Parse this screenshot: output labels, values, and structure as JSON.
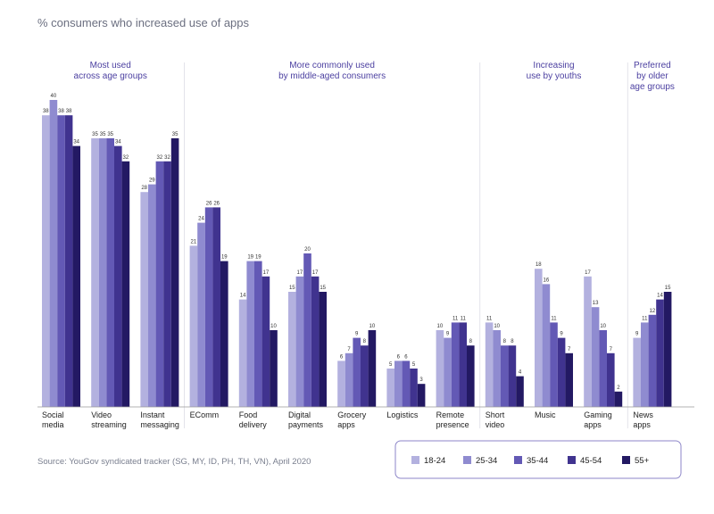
{
  "chart_data": {
    "type": "bar",
    "title": "% consumers who increased use of apps",
    "xlabel": "",
    "ylabel": "",
    "ylim": [
      0,
      40
    ],
    "categories": [
      [
        "Social",
        "media"
      ],
      [
        "Video",
        "streaming"
      ],
      [
        "Instant",
        "messaging"
      ],
      [
        "EComm"
      ],
      [
        "Food",
        "delivery"
      ],
      [
        "Digital",
        "payments"
      ],
      [
        "Grocery",
        "apps"
      ],
      [
        "Logistics"
      ],
      [
        "Remote",
        "presence"
      ],
      [
        "Short",
        "video"
      ],
      [
        "Music"
      ],
      [
        "Gaming",
        "apps"
      ],
      [
        "News",
        "apps"
      ]
    ],
    "series": [
      {
        "name": "18-24",
        "color": "#b3b1df",
        "values": [
          38,
          35,
          28,
          21,
          14,
          15,
          6,
          5,
          10,
          11,
          18,
          17,
          9
        ]
      },
      {
        "name": "25-34",
        "color": "#8f8bd0",
        "values": [
          40,
          35,
          29,
          24,
          19,
          17,
          7,
          6,
          9,
          10,
          16,
          13,
          11
        ]
      },
      {
        "name": "35-44",
        "color": "#6359b5",
        "values": [
          38,
          35,
          32,
          26,
          19,
          20,
          9,
          6,
          11,
          8,
          11,
          10,
          12
        ]
      },
      {
        "name": "45-54",
        "color": "#40338f",
        "values": [
          38,
          34,
          32,
          26,
          17,
          17,
          8,
          5,
          11,
          8,
          9,
          7,
          14
        ]
      },
      {
        "name": "55+",
        "color": "#231963",
        "values": [
          34,
          32,
          35,
          19,
          10,
          15,
          10,
          3,
          8,
          4,
          7,
          2,
          15
        ]
      }
    ],
    "groups": [
      {
        "lines": [
          "Most used",
          "across age groups"
        ],
        "categories": [
          0,
          1,
          2
        ]
      },
      {
        "lines": [
          "More commonly used",
          "by middle-aged consumers"
        ],
        "categories": [
          3,
          4,
          5,
          6,
          7,
          8
        ]
      },
      {
        "lines": [
          "Increasing",
          "use by youths"
        ],
        "categories": [
          9,
          10,
          11
        ]
      },
      {
        "lines": [
          "Preferred",
          "by older",
          "age groups"
        ],
        "categories": [
          12
        ]
      }
    ],
    "legend": {
      "position": "bottom-right"
    }
  },
  "source": "Source: YouGov syndicated tracker (SG, MY, ID, PH, TH, VN), April 2020"
}
